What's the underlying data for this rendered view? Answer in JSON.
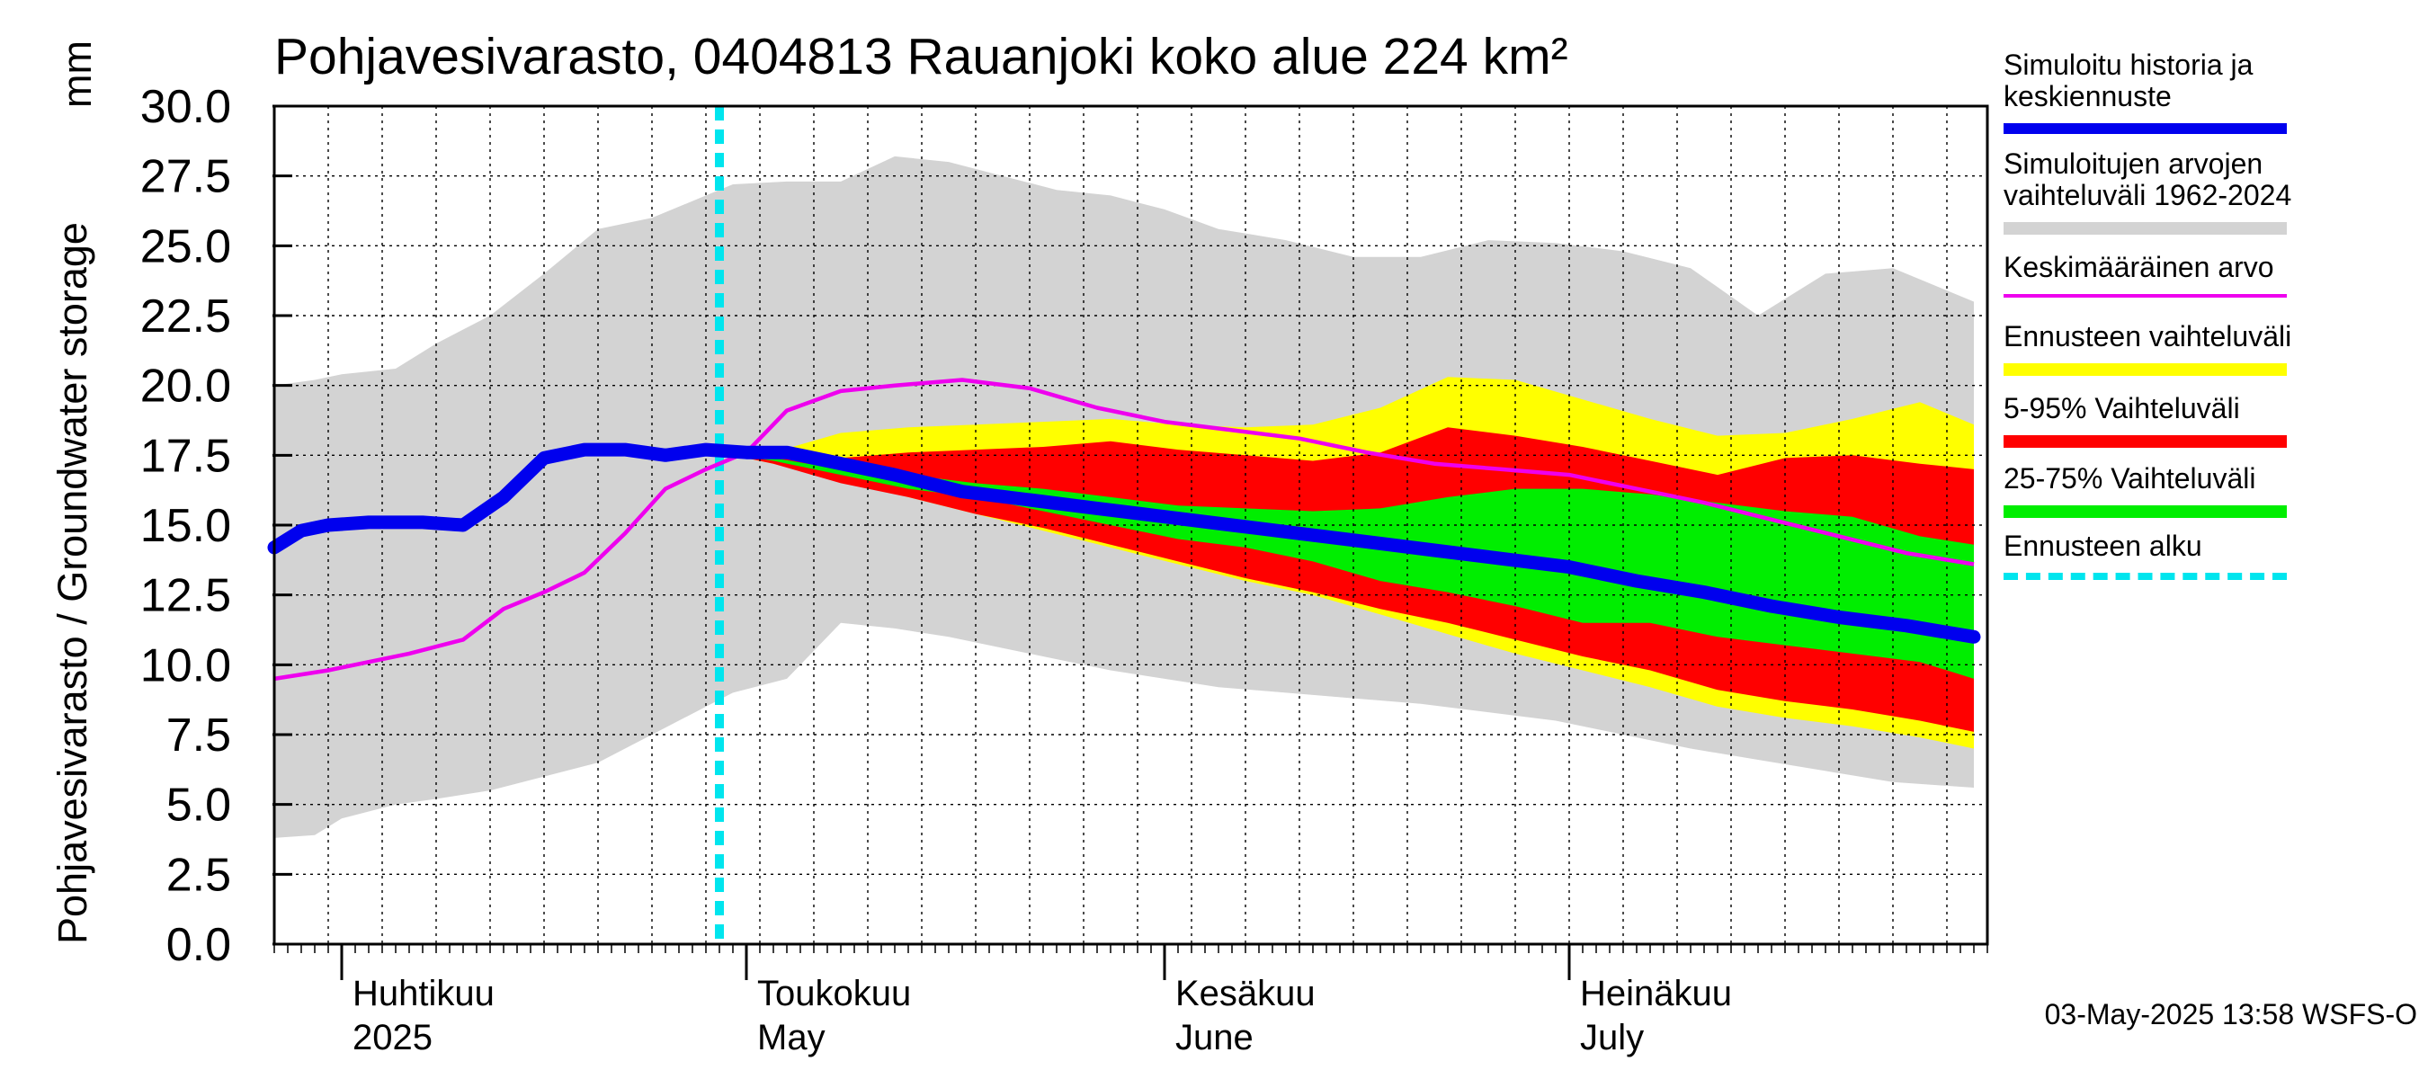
{
  "title": "Pohjavesivarasto, 0404813 Rauanjoki koko alue 224 km²",
  "ylabel": "Pohjavesivarasto / Groundwater storage",
  "unit": "mm",
  "footer": "03-May-2025 13:58 WSFS-O",
  "legend": [
    {
      "label": "Simuloitu historia ja keskiennuste",
      "color": "#0000ee",
      "kind": "line"
    },
    {
      "label": "Simuloitujen arvojen vaihteluväli 1962-2024",
      "color": "#d3d3d3",
      "kind": "band"
    },
    {
      "label": "Keskimääräinen arvo",
      "color": "#ee00ee",
      "kind": "line"
    },
    {
      "label": "Ennusteen vaihteluväli",
      "color": "#ffff00",
      "kind": "band"
    },
    {
      "label": "5-95% Vaihteluväli",
      "color": "#ff0000",
      "kind": "band"
    },
    {
      "label": "25-75% Vaihteluväli",
      "color": "#00ee00",
      "kind": "band"
    },
    {
      "label": "Ennusteen alku",
      "color": "#00e5ee",
      "kind": "dashed"
    }
  ],
  "chart_data": {
    "type": "area",
    "x_start": "2025-03-27",
    "x_end": "2025-07-31",
    "ylim": [
      0,
      30
    ],
    "yticks": [
      "0.0",
      "2.5",
      "5.0",
      "7.5",
      "10.0",
      "12.5",
      "15.0",
      "17.5",
      "20.0",
      "22.5",
      "25.0",
      "27.5",
      "30.0"
    ],
    "months": [
      {
        "fi": "Huhtikuu",
        "en": "2025",
        "date": "2025-04-01"
      },
      {
        "fi": "Toukokuu",
        "en": "May",
        "date": "2025-05-01"
      },
      {
        "fi": "Kesäkuu",
        "en": "June",
        "date": "2025-06-01"
      },
      {
        "fi": "Heinäkuu",
        "en": "July",
        "date": "2025-07-01"
      }
    ],
    "forecast_start": "2025-04-29",
    "grid": true,
    "historical_range": {
      "dates": [
        "2025-03-27",
        "2025-03-30",
        "2025-04-01",
        "2025-04-05",
        "2025-04-08",
        "2025-04-12",
        "2025-04-16",
        "2025-04-20",
        "2025-04-24",
        "2025-04-28",
        "2025-04-30",
        "2025-05-04",
        "2025-05-08",
        "2025-05-12",
        "2025-05-16",
        "2025-05-20",
        "2025-05-24",
        "2025-05-28",
        "2025-06-01",
        "2025-06-05",
        "2025-06-10",
        "2025-06-15",
        "2025-06-20",
        "2025-06-25",
        "2025-06-30",
        "2025-07-05",
        "2025-07-10",
        "2025-07-15",
        "2025-07-20",
        "2025-07-25",
        "2025-07-31"
      ],
      "upper": [
        20.0,
        20.2,
        20.4,
        20.6,
        21.5,
        22.5,
        24.0,
        25.6,
        26.0,
        26.8,
        27.2,
        27.3,
        27.3,
        28.2,
        28.0,
        27.5,
        27.0,
        26.8,
        26.3,
        25.6,
        25.2,
        24.6,
        24.6,
        25.2,
        25.1,
        24.8,
        24.2,
        22.5,
        24.0,
        24.2,
        23.0
      ],
      "lower": [
        3.8,
        3.9,
        4.5,
        5.0,
        5.2,
        5.5,
        6.0,
        6.5,
        7.5,
        8.5,
        9.0,
        9.5,
        11.5,
        11.3,
        11.0,
        10.6,
        10.2,
        9.8,
        9.5,
        9.2,
        9.0,
        8.8,
        8.6,
        8.3,
        8.0,
        7.5,
        7.0,
        6.6,
        6.2,
        5.8,
        5.6
      ]
    },
    "forecast_range": {
      "dates": [
        "2025-04-29",
        "2025-05-03",
        "2025-05-08",
        "2025-05-13",
        "2025-05-18",
        "2025-05-23",
        "2025-05-28",
        "2025-06-02",
        "2025-06-07",
        "2025-06-12",
        "2025-06-17",
        "2025-06-22",
        "2025-06-27",
        "2025-07-02",
        "2025-07-07",
        "2025-07-12",
        "2025-07-17",
        "2025-07-22",
        "2025-07-27",
        "2025-07-31"
      ],
      "p0": [
        17.6,
        17.2,
        16.6,
        16.0,
        15.4,
        14.8,
        14.2,
        13.6,
        13.0,
        12.5,
        11.8,
        11.1,
        10.4,
        9.8,
        9.2,
        8.5,
        8.1,
        7.8,
        7.4,
        7.0
      ],
      "p5": [
        17.6,
        17.2,
        16.5,
        16.0,
        15.4,
        14.9,
        14.3,
        13.7,
        13.1,
        12.6,
        12.0,
        11.5,
        10.9,
        10.3,
        9.8,
        9.1,
        8.7,
        8.4,
        8.0,
        7.6
      ],
      "p25": [
        17.6,
        17.3,
        16.8,
        16.3,
        16.0,
        15.5,
        15.0,
        14.5,
        14.2,
        13.7,
        13.0,
        12.6,
        12.1,
        11.5,
        11.5,
        11.0,
        10.7,
        10.4,
        10.1,
        9.5
      ],
      "p75": [
        17.6,
        17.4,
        17.0,
        16.8,
        16.5,
        16.3,
        16.0,
        15.7,
        15.6,
        15.5,
        15.6,
        16.0,
        16.3,
        16.3,
        16.1,
        15.8,
        15.5,
        15.3,
        14.6,
        14.3
      ],
      "p95": [
        17.6,
        17.5,
        17.4,
        17.6,
        17.7,
        17.8,
        18.0,
        17.7,
        17.5,
        17.3,
        17.6,
        18.5,
        18.2,
        17.8,
        17.3,
        16.8,
        17.4,
        17.5,
        17.2,
        17.0
      ],
      "p100": [
        17.6,
        17.6,
        18.3,
        18.5,
        18.6,
        18.7,
        18.8,
        18.6,
        18.5,
        18.6,
        19.2,
        20.3,
        20.2,
        19.5,
        18.8,
        18.2,
        18.3,
        18.8,
        19.4,
        18.6
      ]
    },
    "series": [
      {
        "name": "Simuloitu historia ja keskiennuste",
        "dates": [
          "2025-03-27",
          "2025-03-29",
          "2025-03-31",
          "2025-04-03",
          "2025-04-07",
          "2025-04-10",
          "2025-04-13",
          "2025-04-16",
          "2025-04-19",
          "2025-04-22",
          "2025-04-25",
          "2025-04-28",
          "2025-05-01",
          "2025-05-04",
          "2025-05-07",
          "2025-05-12",
          "2025-05-17",
          "2025-05-22",
          "2025-05-27",
          "2025-06-01",
          "2025-06-06",
          "2025-06-11",
          "2025-06-16",
          "2025-06-21",
          "2025-06-26",
          "2025-07-01",
          "2025-07-06",
          "2025-07-11",
          "2025-07-16",
          "2025-07-21",
          "2025-07-26",
          "2025-07-31"
        ],
        "values": [
          14.2,
          14.8,
          15.0,
          15.1,
          15.1,
          15.0,
          16.0,
          17.4,
          17.7,
          17.7,
          17.5,
          17.7,
          17.6,
          17.6,
          17.3,
          16.8,
          16.2,
          15.9,
          15.6,
          15.3,
          15.0,
          14.7,
          14.4,
          14.1,
          13.8,
          13.5,
          13.0,
          12.6,
          12.1,
          11.7,
          11.4,
          11.0
        ]
      },
      {
        "name": "Keskimääräinen arvo",
        "dates": [
          "2025-03-27",
          "2025-03-31",
          "2025-04-03",
          "2025-04-06",
          "2025-04-10",
          "2025-04-13",
          "2025-04-16",
          "2025-04-19",
          "2025-04-22",
          "2025-04-25",
          "2025-04-28",
          "2025-05-01",
          "2025-05-04",
          "2025-05-08",
          "2025-05-12",
          "2025-05-17",
          "2025-05-22",
          "2025-05-27",
          "2025-06-01",
          "2025-06-06",
          "2025-06-11",
          "2025-06-16",
          "2025-06-21",
          "2025-06-26",
          "2025-07-01",
          "2025-07-06",
          "2025-07-11",
          "2025-07-16",
          "2025-07-21",
          "2025-07-26",
          "2025-07-31"
        ],
        "values": [
          9.5,
          9.8,
          10.1,
          10.4,
          10.9,
          12.0,
          12.6,
          13.3,
          14.7,
          16.3,
          17.0,
          17.6,
          19.1,
          19.8,
          20.0,
          20.2,
          19.9,
          19.2,
          18.7,
          18.4,
          18.1,
          17.6,
          17.2,
          17.0,
          16.8,
          16.3,
          15.8,
          15.2,
          14.6,
          14.0,
          13.6
        ]
      }
    ]
  }
}
